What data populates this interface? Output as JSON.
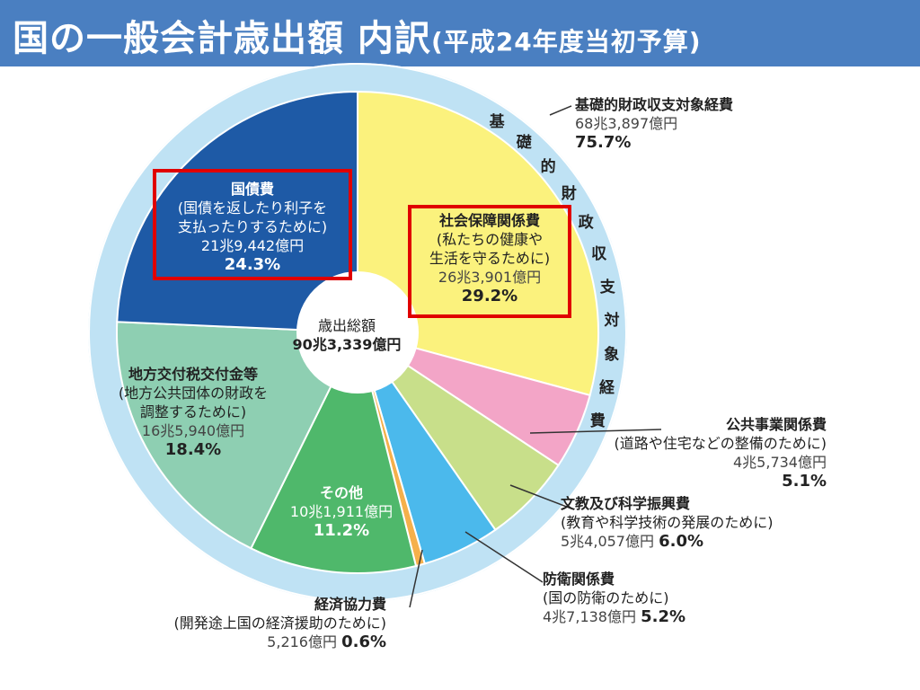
{
  "title": {
    "main": "国の一般会計歳出額 内訳",
    "sub": "(平成24年度当初予算)"
  },
  "center": {
    "label": "歳出総額",
    "value": "90兆3,339億円"
  },
  "ring_label": "基礎的財政収支対象経費",
  "chart_data": {
    "type": "pie",
    "title": "国の一般会計歳出額 内訳(平成24年度当初予算)",
    "total": "90兆3,339億円",
    "slices": [
      {
        "name": "社会保障関係費",
        "note": "(私たちの健康や生活を守るために)",
        "note1": "(私たちの健康や",
        "note2": "生活を守るために)",
        "amount": "26兆3,901億円",
        "percent": 29.2,
        "percent_label": "29.2%",
        "color": "#fbf27d"
      },
      {
        "name": "公共事業関係費",
        "note": "(道路や住宅などの整備のために)",
        "amount": "4兆5,734億円",
        "percent": 5.1,
        "percent_label": "5.1%",
        "color": "#f3a5c7"
      },
      {
        "name": "文教及び科学振興費",
        "note": "(教育や科学技術の発展のために)",
        "amount": "5兆4,057億円",
        "percent": 6.0,
        "percent_label": "6.0%",
        "color": "#c8df8a"
      },
      {
        "name": "防衛関係費",
        "note": "(国の防衛のために)",
        "amount": "4兆7,138億円",
        "percent": 5.2,
        "percent_label": "5.2%",
        "color": "#4bb9ec"
      },
      {
        "name": "経済協力費",
        "note": "(開発途上国の経済援助のために)",
        "amount": "5,216億円",
        "percent": 0.6,
        "percent_label": "0.6%",
        "color": "#f5b04b"
      },
      {
        "name": "その他",
        "note": "",
        "amount": "10兆1,911億円",
        "percent": 11.2,
        "percent_label": "11.2%",
        "color": "#4fb86b"
      },
      {
        "name": "地方交付税交付金等",
        "note": "(地方公共団体の財政を調整するために)",
        "note1": "(地方公共団体の財政を",
        "note2": "調整するために)",
        "amount": "16兆5,940億円",
        "percent": 18.4,
        "percent_label": "18.4%",
        "color": "#8ecfb2"
      },
      {
        "name": "国債費",
        "note": "(国債を返したり利子を支払ったりするために)",
        "note1": "(国債を返したり利子を",
        "note2": "支払ったりするために)",
        "amount": "21兆9,442億円",
        "percent": 24.3,
        "percent_label": "24.3%",
        "color": "#1e5aa6"
      }
    ],
    "group": {
      "name": "基礎的財政収支対象経費",
      "amount": "68兆3,897億円",
      "percent": 75.7,
      "percent_label": "75.7%"
    }
  }
}
